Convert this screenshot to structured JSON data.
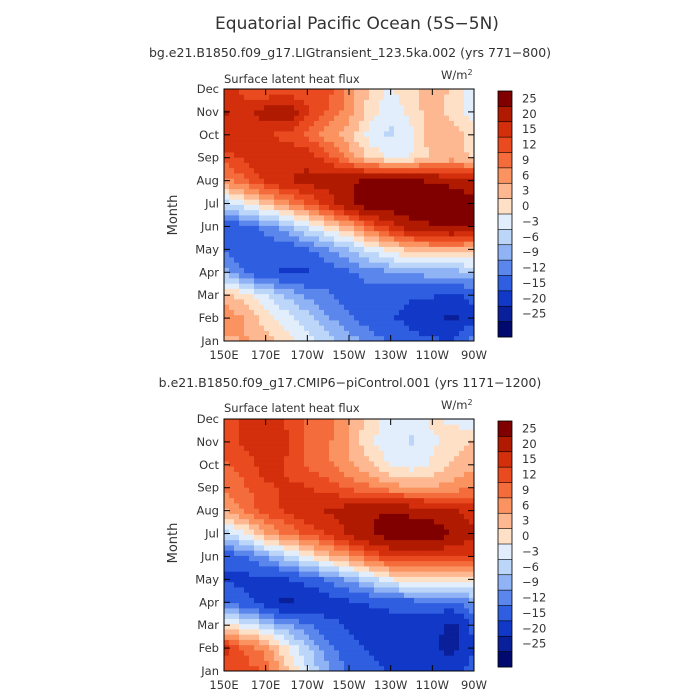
{
  "figure": {
    "title": "Equatorial Pacific Ocean (5S−5N)"
  },
  "colorbar": {
    "levels": [
      "25",
      "20",
      "15",
      "12",
      "9",
      "6",
      "3",
      "0",
      "−3",
      "−6",
      "−9",
      "−12",
      "−15",
      "−20",
      "−25"
    ],
    "colors": [
      "#800000",
      "#b01a00",
      "#d32f0d",
      "#ea4a1f",
      "#f46c3c",
      "#fa9360",
      "#fdb892",
      "#fde0c6",
      "#e2eefc",
      "#bcd6fa",
      "#8fb3f4",
      "#5b86ec",
      "#2f5fe0",
      "#1238c8",
      "#0a1f9a",
      "#000a6e"
    ]
  },
  "chart_data": [
    {
      "type": "heatmap",
      "subtitle": "bg.e21.B1850.f09_g17.LIGtransient_123.5ka.002 (yrs 771−800)",
      "variable": "Surface latent heat flux",
      "units": "W/m",
      "units_sup": "2",
      "xlabel": "",
      "ylabel": "Month",
      "x_ticks": [
        "150E",
        "170E",
        "170W",
        "150W",
        "130W",
        "110W",
        "90W"
      ],
      "y_ticks": [
        "Jan",
        "Feb",
        "Mar",
        "Apr",
        "May",
        "Jun",
        "Jul",
        "Aug",
        "Sep",
        "Oct",
        "Nov",
        "Dec"
      ],
      "x_values": [
        150,
        160,
        170,
        180,
        190,
        200,
        210,
        220,
        230,
        240,
        250,
        260,
        270
      ],
      "months": [
        "Jan",
        "Feb",
        "Mar",
        "Apr",
        "May",
        "Jun",
        "Jul",
        "Aug",
        "Sep",
        "Oct",
        "Nov",
        "Dec"
      ],
      "values": [
        [
          3,
          5,
          3,
          0,
          -3,
          -6,
          -9,
          -12,
          -14,
          -16,
          -17,
          -17,
          -12
        ],
        [
          8,
          4,
          0,
          -3,
          -6,
          -10,
          -13,
          -15,
          -17,
          -19,
          -20,
          -24,
          -18
        ],
        [
          3,
          0,
          -4,
          -8,
          -11,
          -13,
          -15,
          -15,
          -16,
          -17,
          -17,
          -19,
          -16
        ],
        [
          -8,
          -14,
          -17,
          -18,
          -18,
          -16,
          -14,
          -12,
          -11,
          -10,
          -9,
          -9,
          -7
        ],
        [
          -14,
          -16,
          -16,
          -16,
          -14,
          -11,
          -8,
          -4,
          0,
          2,
          3,
          3,
          2
        ],
        [
          -16,
          -15,
          -12,
          -9,
          -4,
          0,
          4,
          10,
          15,
          20,
          22,
          24,
          22
        ],
        [
          -6,
          -2,
          2,
          6,
          10,
          15,
          22,
          26,
          27,
          27,
          27,
          27,
          26
        ],
        [
          6,
          10,
          14,
          17,
          19,
          20,
          22,
          23,
          24,
          23,
          22,
          21,
          18
        ],
        [
          12,
          14,
          16,
          17,
          16,
          12,
          6,
          1,
          -2,
          -1,
          2,
          3,
          1
        ],
        [
          16,
          16,
          14,
          12,
          10,
          6,
          3,
          -3,
          -5,
          -3,
          4,
          3,
          0
        ],
        [
          18,
          16,
          20,
          22,
          14,
          10,
          6,
          0,
          -4,
          0,
          3,
          0,
          -3
        ],
        [
          16,
          12,
          10,
          10,
          11,
          12,
          6,
          1,
          -2,
          1,
          3,
          1,
          -4
        ]
      ]
    },
    {
      "type": "heatmap",
      "subtitle": "b.e21.B1850.f09_g17.CMIP6−piControl.001 (yrs 1171−1200)",
      "variable": "Surface latent heat flux",
      "units": "W/m",
      "units_sup": "2",
      "xlabel": "",
      "ylabel": "Month",
      "x_ticks": [
        "150E",
        "170E",
        "170W",
        "150W",
        "130W",
        "110W",
        "90W"
      ],
      "y_ticks": [
        "Jan",
        "Feb",
        "Mar",
        "Apr",
        "May",
        "Jun",
        "Jul",
        "Aug",
        "Sep",
        "Oct",
        "Nov",
        "Dec"
      ],
      "x_values": [
        150,
        160,
        170,
        180,
        190,
        200,
        210,
        220,
        230,
        240,
        250,
        260,
        270
      ],
      "months": [
        "Jan",
        "Feb",
        "Mar",
        "Apr",
        "May",
        "Jun",
        "Jul",
        "Aug",
        "Sep",
        "Oct",
        "Nov",
        "Dec"
      ],
      "values": [
        [
          10,
          12,
          10,
          2,
          -4,
          -10,
          -14,
          -16,
          -18,
          -19,
          -20,
          -20,
          -15
        ],
        [
          15,
          10,
          6,
          -1,
          -7,
          -12,
          -16,
          -18,
          -20,
          -22,
          -22,
          -24,
          -18
        ],
        [
          0,
          -3,
          -6,
          -10,
          -13,
          -16,
          -18,
          -20,
          -20,
          -21,
          -21,
          -24,
          -16
        ],
        [
          -13,
          -16,
          -20,
          -24,
          -22,
          -20,
          -18,
          -17,
          -16,
          -15,
          -14,
          -15,
          -10
        ],
        [
          -18,
          -19,
          -19,
          -18,
          -16,
          -13,
          -10,
          -6,
          -2,
          0,
          1,
          1,
          0
        ],
        [
          -16,
          -14,
          -10,
          -6,
          -2,
          2,
          6,
          10,
          13,
          14,
          14,
          13,
          14
        ],
        [
          -6,
          -2,
          4,
          8,
          11,
          14,
          18,
          22,
          26,
          27,
          26,
          22,
          18
        ],
        [
          4,
          8,
          12,
          14,
          16,
          18,
          20,
          22,
          22,
          21,
          20,
          18,
          16
        ],
        [
          8,
          10,
          13,
          14,
          14,
          12,
          10,
          8,
          6,
          5,
          5,
          6,
          8
        ],
        [
          10,
          12,
          15,
          13,
          10,
          8,
          5,
          2,
          -2,
          -3,
          -1,
          2,
          4
        ],
        [
          12,
          14,
          16,
          14,
          10,
          8,
          4,
          -1,
          -3,
          -5,
          -2,
          0,
          2
        ],
        [
          12,
          14,
          16,
          13,
          10,
          9,
          5,
          0,
          -3,
          -3,
          -1,
          -2,
          -4
        ]
      ]
    }
  ]
}
